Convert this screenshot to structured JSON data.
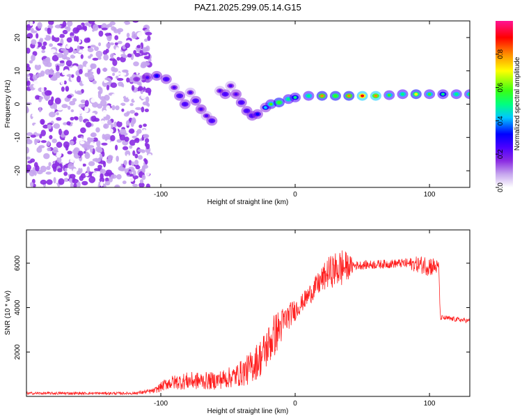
{
  "chart_data": [
    {
      "type": "heatmap",
      "title": "PAZ1.2025.299.05.14.G15",
      "xlabel": "Height of straight line (km)",
      "ylabel": "Frequency (Hz)",
      "xlim": [
        -200,
        130
      ],
      "ylim": [
        -25,
        25
      ],
      "xticks": [
        -100,
        0,
        100
      ],
      "yticks": [
        -20,
        -10,
        0,
        10,
        20
      ],
      "colorbar": {
        "label": "Normalized spectral amplitude",
        "range": [
          0,
          1
        ],
        "ticks": [
          "0.0",
          "0.2",
          "0.4",
          "0.6",
          "0.8"
        ],
        "colors": [
          "#ffffff",
          "#c6a6ee",
          "#8a2be2",
          "#4b00ff",
          "#0000ff",
          "#00c8ff",
          "#00ff7f",
          "#39ff14",
          "#ffff00",
          "#ff8c00",
          "#ff0000",
          "#ff1493"
        ]
      },
      "noise_region": {
        "x_from": -200,
        "x_to": -108,
        "amplitude_range": [
          0.0,
          0.2
        ]
      },
      "signal_track": [
        {
          "x": -118,
          "y": 7.5,
          "amp": 0.2
        },
        {
          "x": -110,
          "y": 8,
          "amp": 0.28
        },
        {
          "x": -103,
          "y": 8.5,
          "amp": 0.32
        },
        {
          "x": -96,
          "y": 7.5,
          "amp": 0.3
        },
        {
          "x": -90,
          "y": 5,
          "amp": 0.25
        },
        {
          "x": -86,
          "y": 2.5,
          "amp": 0.3
        },
        {
          "x": -82,
          "y": 0,
          "amp": 0.3
        },
        {
          "x": -78,
          "y": 3.5,
          "amp": 0.26
        },
        {
          "x": -74,
          "y": 1,
          "amp": 0.3
        },
        {
          "x": -70,
          "y": -1.5,
          "amp": 0.28
        },
        {
          "x": -66,
          "y": -3.5,
          "amp": 0.26
        },
        {
          "x": -62,
          "y": -5,
          "amp": 0.3
        },
        {
          "x": -56,
          "y": 4,
          "amp": 0.24
        },
        {
          "x": -52,
          "y": 3,
          "amp": 0.3
        },
        {
          "x": -48,
          "y": 5.5,
          "amp": 0.25
        },
        {
          "x": -44,
          "y": 3,
          "amp": 0.28
        },
        {
          "x": -40,
          "y": 0.5,
          "amp": 0.3
        },
        {
          "x": -36,
          "y": -2,
          "amp": 0.3
        },
        {
          "x": -32,
          "y": -3.5,
          "amp": 0.3
        },
        {
          "x": -28,
          "y": -3,
          "amp": 0.35
        },
        {
          "x": -22,
          "y": -1,
          "amp": 0.45
        },
        {
          "x": -18,
          "y": 0,
          "amp": 0.6
        },
        {
          "x": -12,
          "y": 0.5,
          "amp": 0.65
        },
        {
          "x": -5,
          "y": 1.5,
          "amp": 0.55
        },
        {
          "x": 0,
          "y": 2,
          "amp": 0.5
        },
        {
          "x": 10,
          "y": 2.5,
          "amp": 0.55
        },
        {
          "x": 20,
          "y": 2.5,
          "amp": 0.8
        },
        {
          "x": 30,
          "y": 2.5,
          "amp": 0.65
        },
        {
          "x": 40,
          "y": 2.5,
          "amp": 0.8
        },
        {
          "x": 50,
          "y": 2.5,
          "amp": 0.9
        },
        {
          "x": 60,
          "y": 2.5,
          "amp": 0.85
        },
        {
          "x": 70,
          "y": 2.7,
          "amp": 0.6
        },
        {
          "x": 80,
          "y": 3,
          "amp": 0.55
        },
        {
          "x": 90,
          "y": 3,
          "amp": 0.7
        },
        {
          "x": 100,
          "y": 3,
          "amp": 0.6
        },
        {
          "x": 110,
          "y": 3,
          "amp": 0.5
        },
        {
          "x": 120,
          "y": 3,
          "amp": 0.55
        },
        {
          "x": 130,
          "y": 3,
          "amp": 0.6
        }
      ]
    },
    {
      "type": "line",
      "xlabel": "Height of straight line (km)",
      "ylabel": "SNR (10 * v/v)",
      "xlim": [
        -200,
        130
      ],
      "ylim": [
        0,
        7500
      ],
      "xticks": [
        -100,
        0,
        100
      ],
      "yticks": [
        2000,
        4000,
        6000
      ],
      "series": [
        {
          "name": "SNR",
          "color": "#ff2020",
          "envelope": [
            {
              "x": -200,
              "mean": 140,
              "spread": 60
            },
            {
              "x": -160,
              "mean": 140,
              "spread": 60
            },
            {
              "x": -120,
              "mean": 140,
              "spread": 60
            },
            {
              "x": -105,
              "mean": 250,
              "spread": 120
            },
            {
              "x": -95,
              "mean": 600,
              "spread": 300
            },
            {
              "x": -80,
              "mean": 700,
              "spread": 400
            },
            {
              "x": -60,
              "mean": 700,
              "spread": 400
            },
            {
              "x": -45,
              "mean": 900,
              "spread": 500
            },
            {
              "x": -35,
              "mean": 1200,
              "spread": 700
            },
            {
              "x": -25,
              "mean": 1800,
              "spread": 900
            },
            {
              "x": -15,
              "mean": 2800,
              "spread": 1000
            },
            {
              "x": -5,
              "mean": 3600,
              "spread": 600
            },
            {
              "x": 5,
              "mean": 4200,
              "spread": 400
            },
            {
              "x": 15,
              "mean": 4900,
              "spread": 500
            },
            {
              "x": 25,
              "mean": 5600,
              "spread": 700
            },
            {
              "x": 35,
              "mean": 5800,
              "spread": 900
            },
            {
              "x": 45,
              "mean": 5900,
              "spread": 200
            },
            {
              "x": 80,
              "mean": 6000,
              "spread": 200
            },
            {
              "x": 100,
              "mean": 5900,
              "spread": 500
            },
            {
              "x": 107,
              "mean": 5800,
              "spread": 300
            },
            {
              "x": 108,
              "mean": 3550,
              "spread": 120
            },
            {
              "x": 130,
              "mean": 3400,
              "spread": 100
            }
          ]
        }
      ]
    }
  ]
}
